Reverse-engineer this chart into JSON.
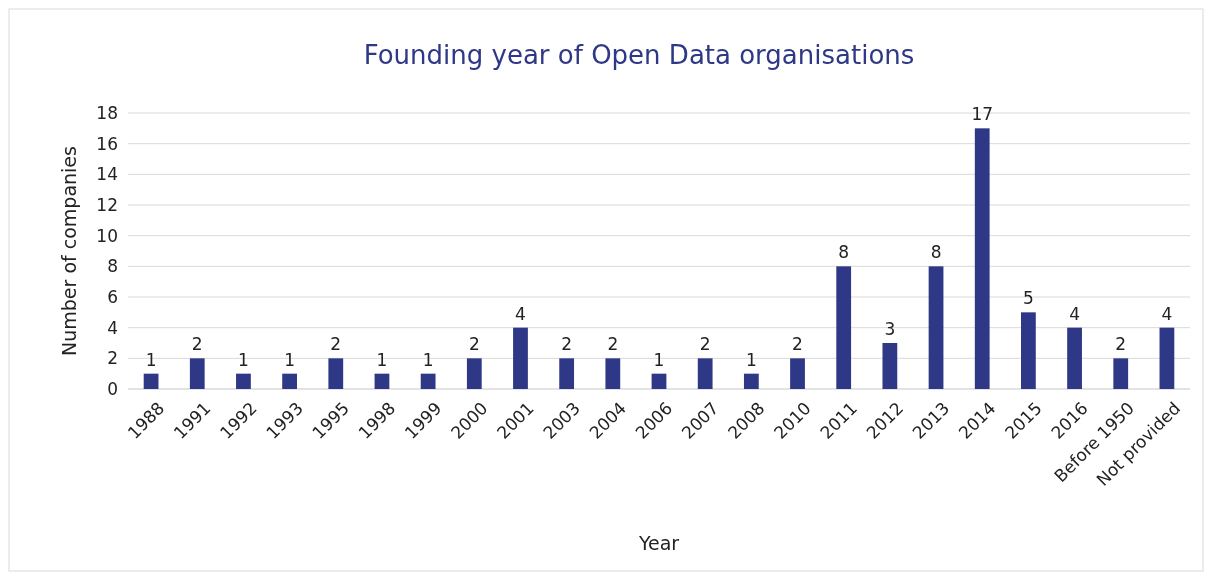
{
  "chart_data": {
    "type": "bar",
    "title": "Founding year of Open Data organisations",
    "xlabel": "Year",
    "ylabel": "Number of companies",
    "categories": [
      "1988",
      "1991",
      "1992",
      "1993",
      "1995",
      "1998",
      "1999",
      "2000",
      "2001",
      "2003",
      "2004",
      "2006",
      "2007",
      "2008",
      "2010",
      "2011",
      "2012",
      "2013",
      "2014",
      "2015",
      "2016",
      "Before 1950",
      "Not provided"
    ],
    "values": [
      1,
      2,
      1,
      1,
      2,
      1,
      1,
      2,
      4,
      2,
      2,
      1,
      2,
      1,
      2,
      8,
      3,
      8,
      17,
      5,
      4,
      2,
      4
    ],
    "color": "#2e3886",
    "ylim": [
      0,
      18
    ],
    "yticks": [
      0,
      2,
      4,
      6,
      8,
      10,
      12,
      14,
      16,
      18
    ],
    "grid": "y",
    "data_labels": true
  }
}
